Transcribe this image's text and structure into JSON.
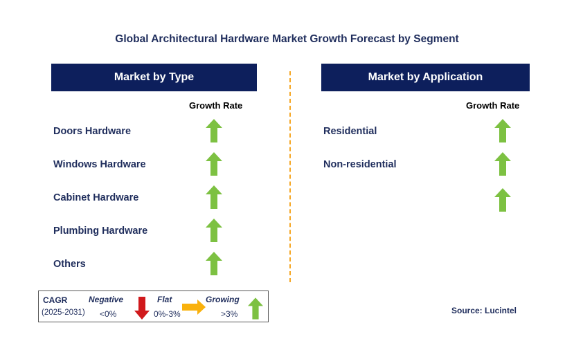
{
  "title": "Global Architectural Hardware Market Growth Forecast by Segment",
  "left_panel": {
    "header": "Market by Type",
    "column_header": "Growth Rate",
    "rows": [
      {
        "label": "Doors Hardware",
        "trend": "growing"
      },
      {
        "label": "Windows Hardware",
        "trend": "growing"
      },
      {
        "label": "Cabinet Hardware",
        "trend": "growing"
      },
      {
        "label": "Plumbing Hardware",
        "trend": "growing"
      },
      {
        "label": "Others",
        "trend": "growing"
      }
    ]
  },
  "right_panel": {
    "header": "Market by Application",
    "column_header": "Growth Rate",
    "rows": [
      {
        "label": "Residential",
        "trend": "growing"
      },
      {
        "label": "Non-residential",
        "trend": "growing"
      },
      {
        "label": "",
        "trend": "growing"
      }
    ]
  },
  "legend": {
    "cagr_label": "CAGR",
    "period": "(2025-2031)",
    "negative_label": "Negative",
    "negative_range": "<0%",
    "flat_label": "Flat",
    "flat_range": "0%-3%",
    "growing_label": "Growing",
    "growing_range": ">3%"
  },
  "source": "Source: Lucintel",
  "colors": {
    "header_bg": "#0d1f5c",
    "up_arrow": "#7dc142",
    "down_arrow": "#d0191c",
    "flat_arrow": "#f9b10c",
    "divider": "#f5a623"
  },
  "icons": {
    "growing": "up-arrow-icon",
    "negative": "down-arrow-icon",
    "flat": "right-arrow-icon"
  }
}
